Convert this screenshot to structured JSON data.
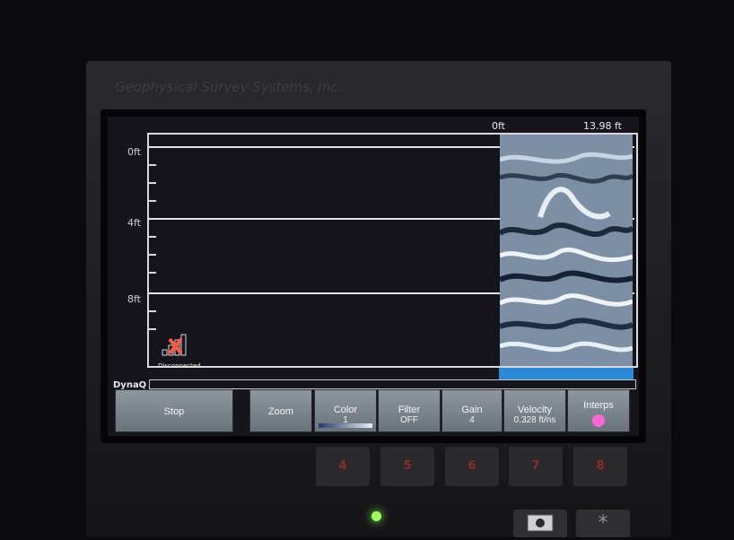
{
  "device": {
    "brand_text": "Geophysical Survey Systems, Inc."
  },
  "plot": {
    "top_range_start": "0ft",
    "top_range_end": "13.98 ft",
    "depth_labels": [
      "0ft",
      "4ft",
      "8ft"
    ],
    "status": "Disconnected",
    "dynaq_label": "DynaQ"
  },
  "buttons": {
    "stop": "Stop",
    "zoom": "Zoom",
    "color_label": "Color",
    "color_value": "1",
    "filter_label": "Filter",
    "filter_value": "OFF",
    "gain_label": "Gain",
    "gain_value": "4",
    "velocity_label": "Velocity",
    "velocity_value": "0.328 ft/ns",
    "interps_label": "Interps"
  },
  "keypad": {
    "keys": [
      "4",
      "5",
      "6",
      "7",
      "8"
    ],
    "bottom_keys": [
      "*"
    ]
  },
  "colors": {
    "accent_blue": "#2b8ad8",
    "interps_pink": "#ff67d9",
    "led_green": "#9cff5a"
  }
}
